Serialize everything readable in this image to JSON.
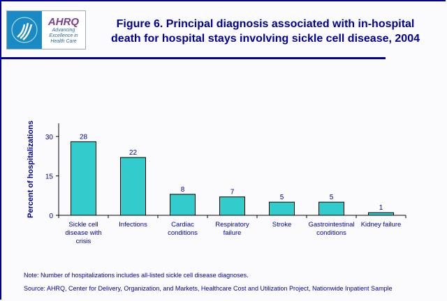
{
  "header": {
    "title_line1": "Figure 6. Principal diagnosis associated with in-hospital",
    "title_line2": "death for hospital stays involving sickle cell disease, 2004",
    "logo_text": "AHRQ",
    "logo_tagline": "Advancing Excellence in Health Care"
  },
  "colors": {
    "bar": "#33cccc",
    "text": "#000099",
    "border": "#000099"
  },
  "chart_data": {
    "type": "bar",
    "title": "Figure 6. Principal diagnosis associated with in-hospital death for hospital stays involving sickle cell disease, 2004",
    "xlabel": "",
    "ylabel": "Percent of hospitalizations",
    "categories": [
      "Sickle cell disease with crisis",
      "Infections",
      "Cardiac conditions",
      "Respiratory failure",
      "Stroke",
      "Gastrointestinal conditions",
      "Kidney failure"
    ],
    "category_lines": [
      [
        "Sickle cell",
        "disease with",
        "crisis"
      ],
      [
        "Infections"
      ],
      [
        "Cardiac",
        "conditions"
      ],
      [
        "Respiratory",
        "failure"
      ],
      [
        "Stroke"
      ],
      [
        "Gastrointestinal",
        "conditions"
      ],
      [
        "Kidney failure"
      ]
    ],
    "values": [
      28,
      22,
      8,
      7,
      5,
      5,
      1
    ],
    "ylim": [
      0,
      35
    ],
    "yticks": [
      0,
      15,
      30
    ],
    "grid": false,
    "legend": "none"
  },
  "footer": {
    "note": "Note: Number of hospitalizations includes all-listed sickle cell disease diagnoses.",
    "source": "Source: AHRQ, Center for Delivery, Organization, and Markets, Healthcare Cost and Utilization Project, Nationwide Inpatient Sample"
  }
}
